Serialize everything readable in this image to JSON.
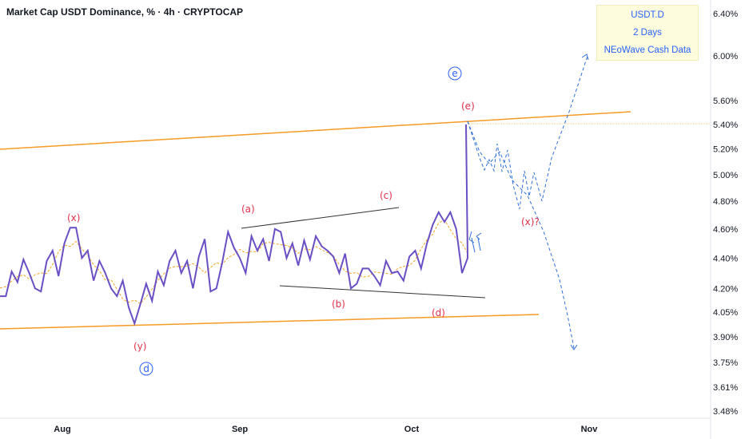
{
  "title": "Market Cap USDT Dominance, % · 4h · CRYPTOCAP",
  "legend": {
    "line1": "USDT.D",
    "line2": "2 Days",
    "line3": "NEoWave Cash Data"
  },
  "colors": {
    "price": "#6a4fc4",
    "channel": "#f5a623",
    "wave_line": "#131722",
    "projection": "#2f6fd6",
    "wave_label_red": "#e0304a",
    "wave_label_blue": "#2962ff",
    "ma": "#f5a623"
  },
  "chart_data": {
    "type": "line",
    "title": "Market Cap USDT Dominance, % · 4h · CRYPTOCAP",
    "y_scale": "log",
    "y_ticks": [
      "6.40%",
      "6.00%",
      "5.60%",
      "5.40%",
      "5.20%",
      "5.00%",
      "4.80%",
      "4.60%",
      "4.40%",
      "4.20%",
      "4.05%",
      "3.90%",
      "3.75%",
      "3.61%",
      "3.48%"
    ],
    "y_tick_values": [
      6.4,
      6.0,
      5.6,
      5.4,
      5.2,
      5.0,
      4.8,
      4.6,
      4.4,
      4.2,
      4.05,
      3.9,
      3.75,
      3.61,
      3.48
    ],
    "x_ticks": [
      "Aug",
      "Sep",
      "Oct",
      "Nov"
    ],
    "x_tick_dates": [
      "2023-08-01",
      "2023-09-01",
      "2023-10-01",
      "2023-11-01"
    ],
    "series": [
      {
        "values_description": "USDT.D price (4h), dates 2023-07-22 → 2023-10-10",
        "x": [
          "2023-07-22",
          "2023-07-23",
          "2023-07-24",
          "2023-07-25",
          "2023-07-26",
          "2023-07-27",
          "2023-07-28",
          "2023-07-29",
          "2023-07-30",
          "2023-07-31",
          "2023-08-01",
          "2023-08-02",
          "2023-08-03",
          "2023-08-04",
          "2023-08-05",
          "2023-08-06",
          "2023-08-07",
          "2023-08-08",
          "2023-08-09",
          "2023-08-10",
          "2023-08-11",
          "2023-08-12",
          "2023-08-13",
          "2023-08-14",
          "2023-08-15",
          "2023-08-16",
          "2023-08-17",
          "2023-08-18",
          "2023-08-19",
          "2023-08-20",
          "2023-08-21",
          "2023-08-22",
          "2023-08-23",
          "2023-08-24",
          "2023-08-25",
          "2023-08-26",
          "2023-08-27",
          "2023-08-28",
          "2023-08-29",
          "2023-08-30",
          "2023-08-31",
          "2023-09-01",
          "2023-09-02",
          "2023-09-03",
          "2023-09-04",
          "2023-09-05",
          "2023-09-06",
          "2023-09-07",
          "2023-09-08",
          "2023-09-09",
          "2023-09-10",
          "2023-09-11",
          "2023-09-12",
          "2023-09-13",
          "2023-09-14",
          "2023-09-15",
          "2023-09-16",
          "2023-09-17",
          "2023-09-18",
          "2023-09-19",
          "2023-09-20",
          "2023-09-21",
          "2023-09-22",
          "2023-09-23",
          "2023-09-24",
          "2023-09-25",
          "2023-09-26",
          "2023-09-27",
          "2023-09-28",
          "2023-09-29",
          "2023-09-30",
          "2023-10-01",
          "2023-10-02",
          "2023-10-03",
          "2023-10-04",
          "2023-10-05",
          "2023-10-06",
          "2023-10-07",
          "2023-10-08",
          "2023-10-09",
          "2023-10-10"
        ],
        "y": [
          4.15,
          4.15,
          4.31,
          4.24,
          4.39,
          4.3,
          4.2,
          4.18,
          4.38,
          4.45,
          4.28,
          4.5,
          4.61,
          4.61,
          4.4,
          4.45,
          4.25,
          4.38,
          4.3,
          4.2,
          4.15,
          4.25,
          4.08,
          3.98,
          4.1,
          4.23,
          4.12,
          4.31,
          4.22,
          4.38,
          4.45,
          4.3,
          4.38,
          4.2,
          4.41,
          4.53,
          4.18,
          4.2,
          4.37,
          4.58,
          4.47,
          4.4,
          4.3,
          4.55,
          4.45,
          4.53,
          4.38,
          4.6,
          4.58,
          4.4,
          4.5,
          4.35,
          4.52,
          4.39,
          4.55,
          4.48,
          4.45,
          4.41,
          4.3,
          4.43,
          4.2,
          4.23,
          4.33,
          4.33,
          4.28,
          4.22,
          4.38,
          4.3,
          4.31,
          4.25,
          4.41,
          4.45,
          4.33,
          4.5,
          4.63,
          4.72,
          4.65,
          4.72,
          4.6,
          4.48,
          4.4
        ]
      },
      {
        "name_label": "projection",
        "x": [
          "2023-10-10",
          "2023-10-12",
          "2023-10-14",
          "2023-10-16",
          "2023-10-18",
          "2023-10-20",
          "2023-10-22",
          "2023-10-24",
          "2023-10-26",
          "2023-10-28",
          "2023-10-30",
          "2023-11-01"
        ],
        "y": [
          5.4,
          5.0,
          5.2,
          4.95,
          5.1,
          4.75,
          5.0,
          4.85,
          5.05,
          4.8,
          5.6,
          6.0
        ]
      }
    ],
    "channel_upper": {
      "x": [
        "2023-07-22",
        "2023-11-03"
      ],
      "y": [
        5.28,
        5.48
      ]
    },
    "channel_lower": {
      "x": [
        "2023-07-22",
        "2023-10-27"
      ],
      "y": [
        3.94,
        4.03
      ]
    },
    "wave_labels": [
      "(x)",
      "(y)",
      "(a)",
      "(b)",
      "(c)",
      "(d)",
      "(e)",
      "(x)?",
      "d",
      "e"
    ],
    "xlim": [
      "2023-07-22",
      "2023-11-12"
    ],
    "ylim": [
      3.44,
      6.54
    ],
    "grid": false,
    "legend_position": "top-right"
  }
}
